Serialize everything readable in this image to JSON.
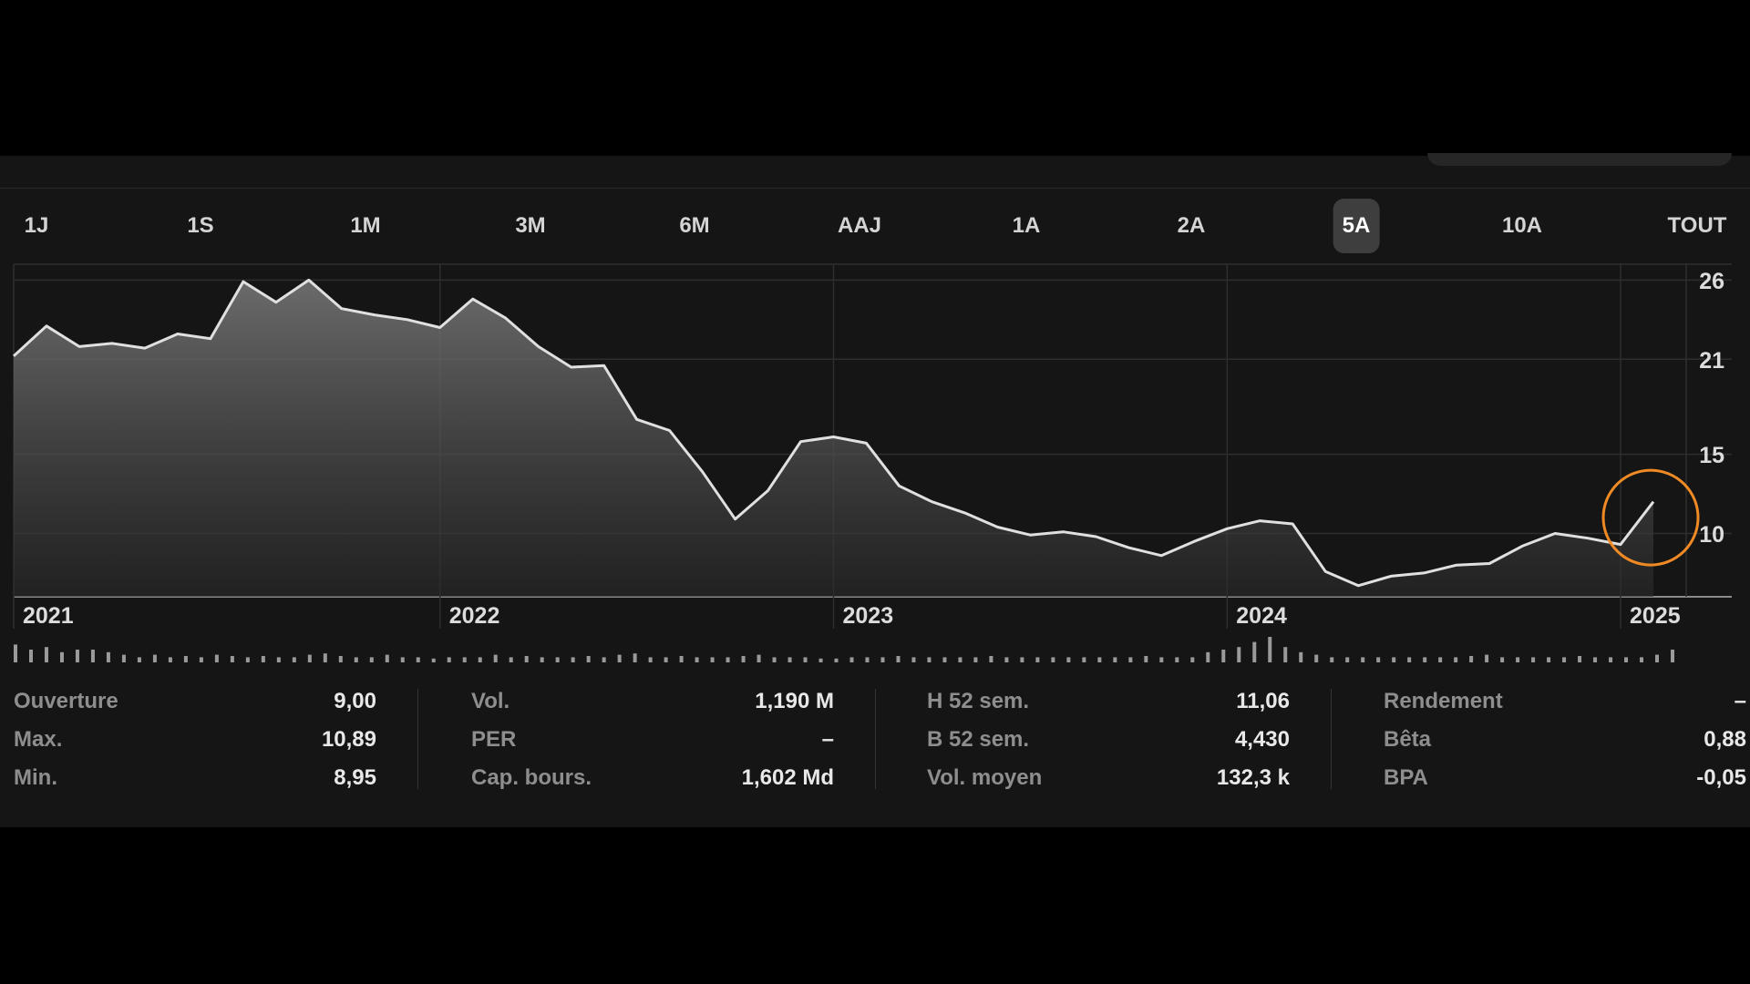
{
  "tabs": [
    {
      "label": "1J"
    },
    {
      "label": "1S"
    },
    {
      "label": "1M"
    },
    {
      "label": "3M"
    },
    {
      "label": "6M"
    },
    {
      "label": "AAJ"
    },
    {
      "label": "1A"
    },
    {
      "label": "2A"
    },
    {
      "label": "5A",
      "active": true
    },
    {
      "label": "10A"
    },
    {
      "label": "TOUT"
    }
  ],
  "chart_data": {
    "type": "area",
    "x_range": [
      "2020-12",
      "2025-03"
    ],
    "ylim": [
      6,
      27
    ],
    "y_ticks": [
      26,
      21,
      15,
      10
    ],
    "x_tick_labels": [
      "2021",
      "2022",
      "2023",
      "2024",
      "2025"
    ],
    "x_tick_dates": [
      "2020-12",
      "2022-01",
      "2023-01",
      "2024-01",
      "2025-01"
    ],
    "grid": true,
    "colors": {
      "line": "#e0e0e0",
      "highlight": "#f08a24"
    },
    "highlight_x": "2025-02",
    "series": [
      {
        "x": [
          "2020-12",
          "2021-01",
          "2021-02",
          "2021-03",
          "2021-04",
          "2021-05",
          "2021-06",
          "2021-07",
          "2021-08",
          "2021-09",
          "2021-10",
          "2021-11",
          "2021-12",
          "2022-01",
          "2022-02",
          "2022-03",
          "2022-04",
          "2022-05",
          "2022-06",
          "2022-07",
          "2022-08",
          "2022-09",
          "2022-10",
          "2022-11",
          "2022-12",
          "2023-01",
          "2023-02",
          "2023-03",
          "2023-04",
          "2023-05",
          "2023-06",
          "2023-07",
          "2023-08",
          "2023-09",
          "2023-10",
          "2023-11",
          "2023-12",
          "2024-01",
          "2024-02",
          "2024-03",
          "2024-04",
          "2024-05",
          "2024-06",
          "2024-07",
          "2024-08",
          "2024-09",
          "2024-10",
          "2024-11",
          "2024-12",
          "2025-01",
          "2025-02"
        ],
        "values": [
          21.2,
          23.1,
          21.8,
          22.0,
          21.7,
          22.6,
          22.3,
          25.9,
          24.6,
          26.0,
          24.2,
          23.8,
          23.5,
          23.0,
          24.8,
          23.6,
          21.8,
          20.5,
          20.6,
          17.2,
          16.5,
          13.9,
          10.9,
          12.7,
          15.8,
          16.1,
          15.7,
          13.0,
          12.0,
          11.3,
          10.4,
          9.9,
          10.1,
          9.8,
          9.1,
          8.6,
          9.5,
          10.3,
          10.8,
          10.6,
          7.6,
          6.7,
          7.3,
          7.5,
          8.0,
          8.1,
          9.2,
          10.0,
          9.7,
          9.3,
          12.0
        ]
      }
    ]
  },
  "volume": [
    0.7,
    0.5,
    0.6,
    0.4,
    0.5,
    0.5,
    0.4,
    0.3,
    0.2,
    0.3,
    0.2,
    0.25,
    0.2,
    0.3,
    0.25,
    0.2,
    0.25,
    0.2,
    0.2,
    0.3,
    0.35,
    0.25,
    0.2,
    0.2,
    0.3,
    0.2,
    0.2,
    0.15,
    0.2,
    0.2,
    0.2,
    0.3,
    0.2,
    0.25,
    0.2,
    0.2,
    0.2,
    0.25,
    0.2,
    0.3,
    0.35,
    0.2,
    0.2,
    0.25,
    0.2,
    0.2,
    0.2,
    0.25,
    0.3,
    0.2,
    0.2,
    0.2,
    0.15,
    0.15,
    0.2,
    0.2,
    0.2,
    0.25,
    0.2,
    0.2,
    0.2,
    0.2,
    0.2,
    0.25,
    0.2,
    0.2,
    0.2,
    0.2,
    0.2,
    0.2,
    0.2,
    0.2,
    0.2,
    0.25,
    0.2,
    0.2,
    0.2,
    0.4,
    0.5,
    0.6,
    0.8,
    1.0,
    0.6,
    0.4,
    0.3,
    0.2,
    0.2,
    0.2,
    0.2,
    0.2,
    0.2,
    0.2,
    0.2,
    0.2,
    0.25,
    0.3,
    0.2,
    0.2,
    0.2,
    0.2,
    0.2,
    0.25,
    0.2,
    0.2,
    0.2,
    0.2,
    0.3,
    0.5
  ],
  "stats": [
    [
      {
        "label": "Ouverture",
        "value": "9,00"
      },
      {
        "label": "Max.",
        "value": "10,89"
      },
      {
        "label": "Min.",
        "value": "8,95"
      }
    ],
    [
      {
        "label": "Vol.",
        "value": "1,190 M"
      },
      {
        "label": "PER",
        "value": "–"
      },
      {
        "label": "Cap. bours.",
        "value": "1,602 Md"
      }
    ],
    [
      {
        "label": "H 52 sem.",
        "value": "11,06"
      },
      {
        "label": "B 52 sem.",
        "value": "4,430"
      },
      {
        "label": "Vol. moyen",
        "value": "132,3 k"
      }
    ],
    [
      {
        "label": "Rendement",
        "value": "–"
      },
      {
        "label": "Bêta",
        "value": "0,88"
      },
      {
        "label": "BPA",
        "value": "-0,05"
      }
    ]
  ]
}
